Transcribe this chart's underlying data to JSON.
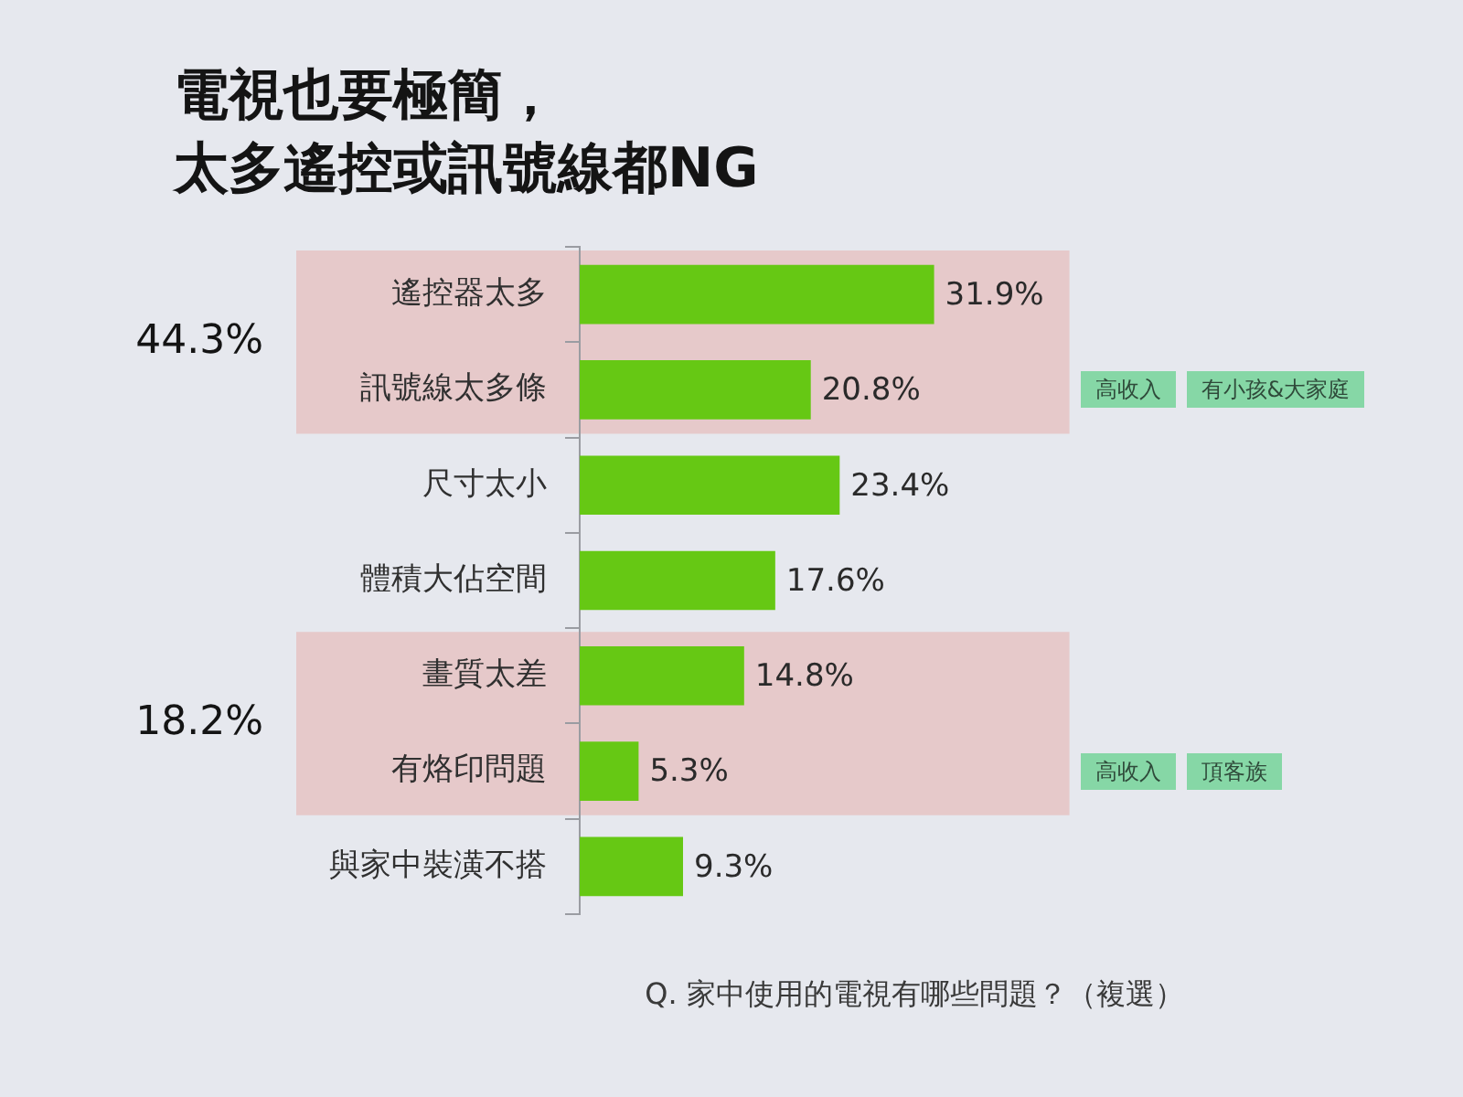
{
  "chart_data": {
    "type": "bar",
    "orientation": "horizontal",
    "title": "電視也要極簡，太多遙控或訊號線都NG",
    "categories": [
      "遙控器太多",
      "訊號線太多條",
      "尺寸太小",
      "體積大佔空間",
      "畫質太差",
      "有烙印問題",
      "與家中裝潢不搭"
    ],
    "values": [
      31.9,
      20.8,
      23.4,
      17.6,
      14.8,
      5.3,
      9.3
    ],
    "value_labels": [
      "31.9%",
      "20.8%",
      "23.4%",
      "17.6%",
      "14.8%",
      "5.3%",
      "9.3%"
    ],
    "color": "#66c814",
    "bands": [
      {
        "axis": "y",
        "from": "遙控器太多",
        "to": "訊號線太多條",
        "label": "44.3%",
        "color": "#e6c9ca"
      },
      {
        "axis": "y",
        "from": "畫質太差",
        "to": "有烙印問題",
        "label": "18.2%",
        "color": "#e6c9ca"
      }
    ],
    "annotations": [
      "高收入",
      "有小孩&大家庭",
      "高收入",
      "頂客族",
      "Q. 家中使用的電視有哪些問題？（複選）"
    ]
  }
}
